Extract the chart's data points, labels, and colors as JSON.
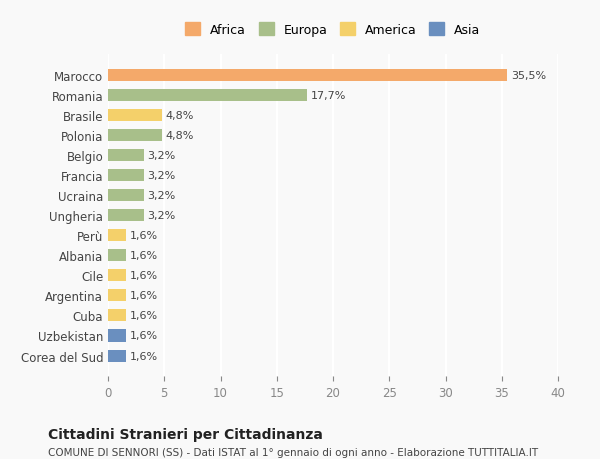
{
  "countries": [
    "Marocco",
    "Romania",
    "Brasile",
    "Polonia",
    "Belgio",
    "Francia",
    "Ucraina",
    "Ungheria",
    "Perù",
    "Albania",
    "Cile",
    "Argentina",
    "Cuba",
    "Uzbekistan",
    "Corea del Sud"
  ],
  "values": [
    35.5,
    17.7,
    4.8,
    4.8,
    3.2,
    3.2,
    3.2,
    3.2,
    1.6,
    1.6,
    1.6,
    1.6,
    1.6,
    1.6,
    1.6
  ],
  "labels": [
    "35,5%",
    "17,7%",
    "4,8%",
    "4,8%",
    "3,2%",
    "3,2%",
    "3,2%",
    "3,2%",
    "1,6%",
    "1,6%",
    "1,6%",
    "1,6%",
    "1,6%",
    "1,6%",
    "1,6%"
  ],
  "colors": [
    "#F4A96A",
    "#A8BF8A",
    "#F4D06A",
    "#A8BF8A",
    "#A8BF8A",
    "#A8BF8A",
    "#A8BF8A",
    "#A8BF8A",
    "#F4D06A",
    "#A8BF8A",
    "#F4D06A",
    "#F4D06A",
    "#F4D06A",
    "#6A8FBF",
    "#6A8FBF"
  ],
  "legend_labels": [
    "Africa",
    "Europa",
    "America",
    "Asia"
  ],
  "legend_colors": [
    "#F4A96A",
    "#A8BF8A",
    "#F4D06A",
    "#6A8FBF"
  ],
  "title": "Cittadini Stranieri per Cittadinanza",
  "subtitle": "COMUNE DI SENNORI (SS) - Dati ISTAT al 1° gennaio di ogni anno - Elaborazione TUTTITALIA.IT",
  "xlim": [
    0,
    40
  ],
  "xticks": [
    0,
    5,
    10,
    15,
    20,
    25,
    30,
    35,
    40
  ],
  "background_color": "#f9f9f9",
  "grid_color": "#ffffff"
}
